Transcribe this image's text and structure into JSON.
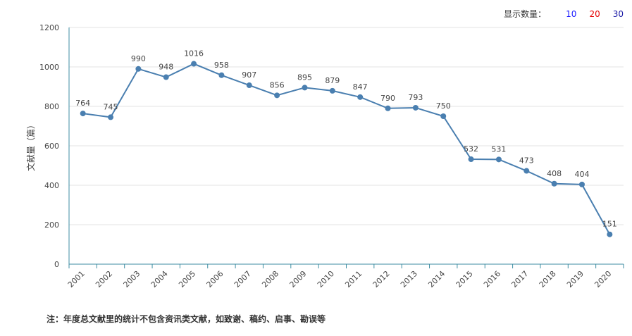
{
  "display_count": {
    "label": "显示数量：",
    "options": [
      {
        "label": "10",
        "color": "#1a1aff"
      },
      {
        "label": "20",
        "color": "#e60000"
      },
      {
        "label": "30",
        "color": "#1a1aa6"
      }
    ]
  },
  "footnote": "注：年度总文献里的统计不包含资讯类文献，如致谢、稿约、启事、勘误等",
  "chart_data": {
    "type": "line",
    "title": "",
    "xlabel": "",
    "ylabel": "文献量（篇）",
    "ylim": [
      0,
      1200
    ],
    "yticks": [
      0,
      200,
      400,
      600,
      800,
      1000,
      1200
    ],
    "x": [
      "2001",
      "2002",
      "2003",
      "2004",
      "2005",
      "2006",
      "2007",
      "2008",
      "2009",
      "2010",
      "2011",
      "2012",
      "2013",
      "2014",
      "2015",
      "2016",
      "2017",
      "2018",
      "2019",
      "2020"
    ],
    "series": [
      {
        "values": [
          764,
          745,
          990,
          948,
          1016,
          958,
          907,
          856,
          895,
          879,
          847,
          790,
          793,
          750,
          532,
          531,
          473,
          408,
          404,
          151
        ]
      }
    ],
    "grid": true,
    "line_color": "#4a7fb0"
  }
}
